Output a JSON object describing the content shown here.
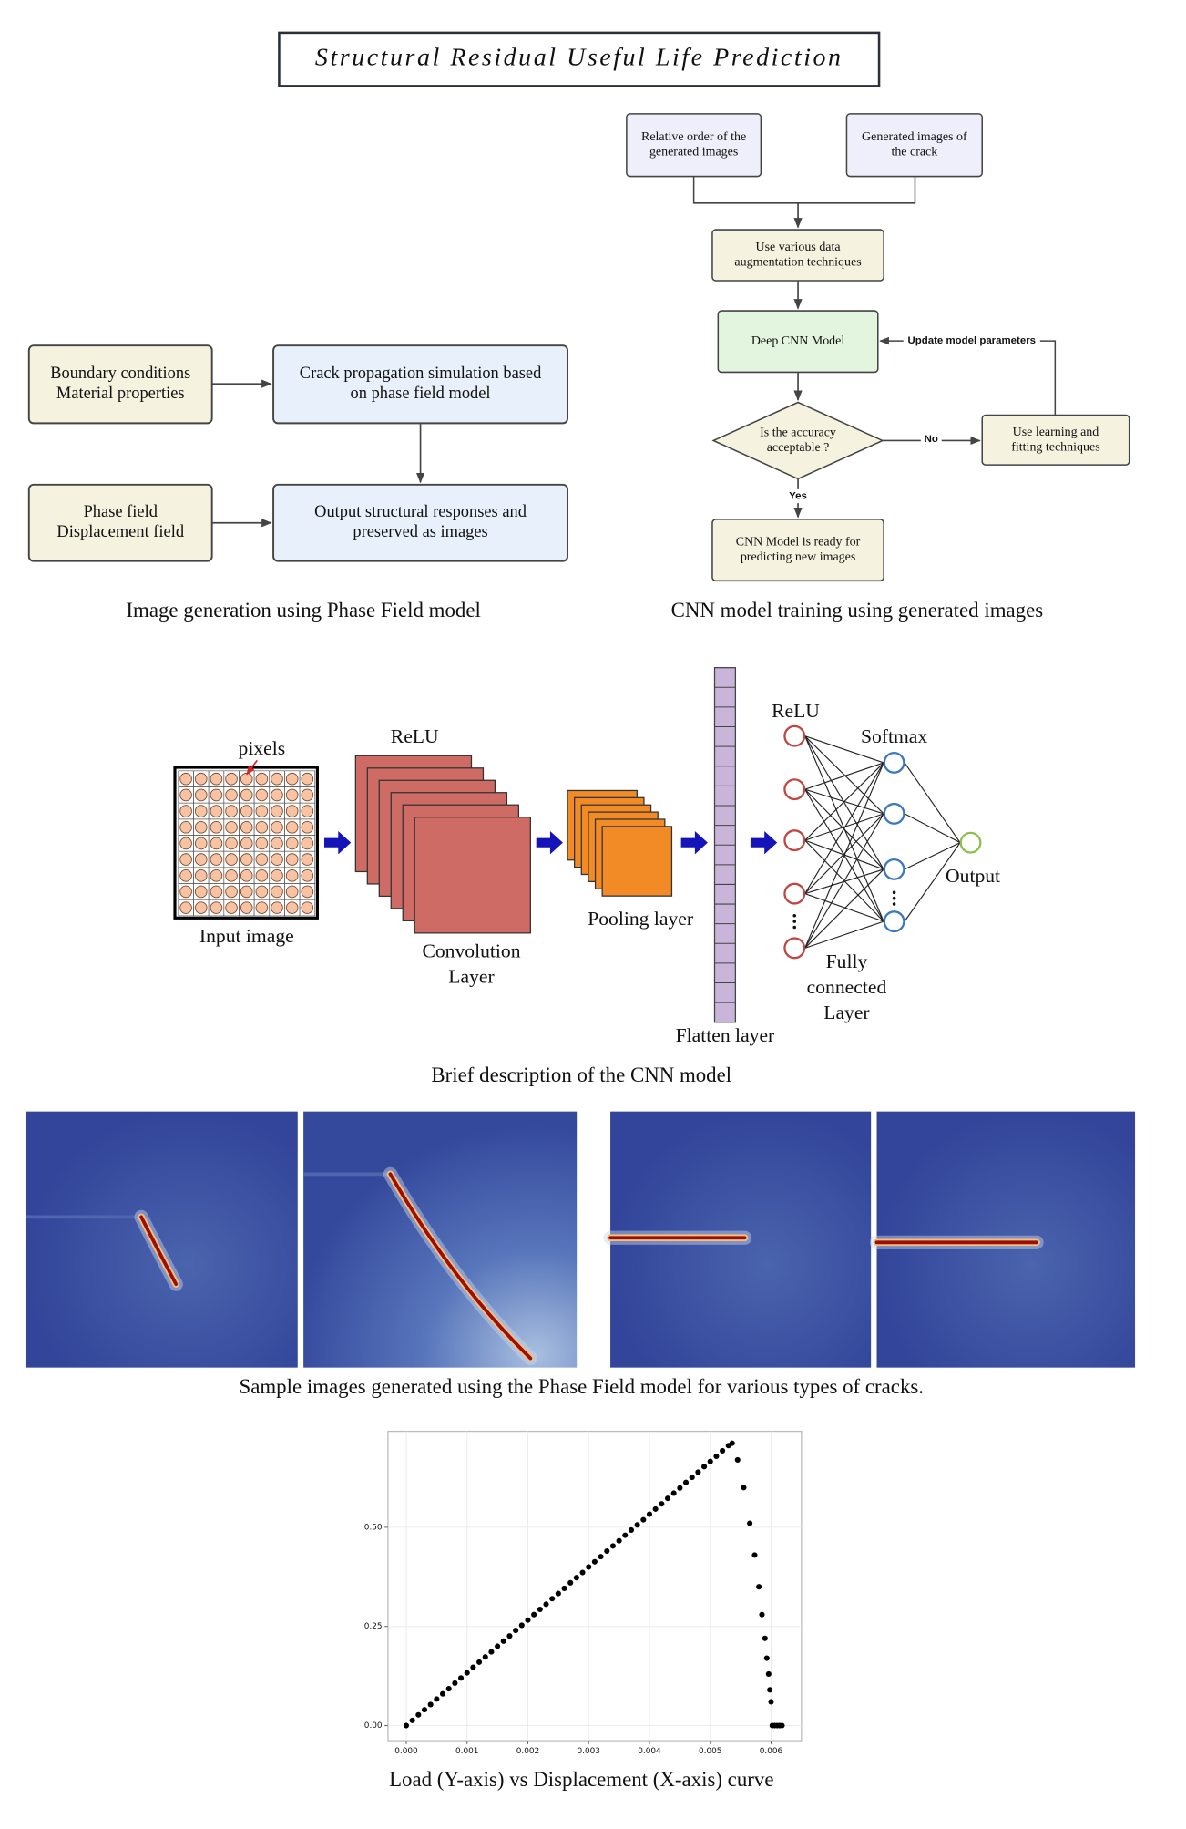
{
  "title": "Structural Residual Useful Life Prediction",
  "phase_field_flow": {
    "nodes": [
      {
        "lines": [
          "Boundary conditions",
          "Material properties"
        ]
      },
      {
        "lines": [
          "Crack propagation simulation based",
          "on phase field model"
        ]
      },
      {
        "lines": [
          "Phase field",
          "Displacement field"
        ]
      },
      {
        "lines": [
          "Output structural responses and",
          "preserved as images"
        ]
      }
    ],
    "caption": "Image generation using Phase Field model"
  },
  "cnn_training_flow": {
    "nodes": [
      {
        "lines": [
          "Relative order of the",
          "generated images"
        ]
      },
      {
        "lines": [
          "Generated images of",
          "the crack"
        ]
      },
      {
        "lines": [
          "Use various data",
          "augmentation techniques"
        ]
      },
      {
        "lines": [
          "Deep CNN Model"
        ]
      },
      {
        "lines": [
          "Is the accuracy",
          "acceptable ?"
        ]
      },
      {
        "lines": [
          "Use learning and",
          "fitting techniques"
        ]
      },
      {
        "lines": [
          "CNN Model is ready for",
          "predicting new images"
        ]
      }
    ],
    "edge_labels": {
      "update": "Update model parameters",
      "no": "No",
      "yes": "Yes"
    },
    "caption": "CNN model training using generated images"
  },
  "cnn_diagram": {
    "labels": {
      "pixels": "pixels",
      "input": "Input image",
      "conv_relu": "ReLU",
      "conv": [
        "Convolution",
        "Layer"
      ],
      "pooling": "Pooling layer",
      "flatten": "Flatten layer",
      "fc_relu": "ReLU",
      "softmax": "Softmax",
      "output": "Output",
      "fc": [
        "Fully",
        "connected",
        "Layer"
      ]
    },
    "caption": "Brief description of the CNN model"
  },
  "sample_images": {
    "caption": "Sample images generated using the Phase Field model for various types of cracks."
  },
  "chart_data": {
    "type": "scatter",
    "title": "Load (Y-axis) vs Displacement (X-axis) curve",
    "color": "#000000",
    "x": [
      0,
      0.0001,
      0.0002,
      0.0003,
      0.0004,
      0.0005,
      0.0006,
      0.0007,
      0.0008,
      0.0009,
      0.001,
      0.0011,
      0.0012,
      0.0013,
      0.0014,
      0.0015,
      0.0016,
      0.0017,
      0.0018,
      0.0019,
      0.002,
      0.0021,
      0.0022,
      0.0023,
      0.0024,
      0.0025,
      0.0026,
      0.0027,
      0.0028,
      0.0029,
      0.003,
      0.0031,
      0.0032,
      0.0033,
      0.0034,
      0.0035,
      0.0036,
      0.0037,
      0.0038,
      0.0039,
      0.004,
      0.0041,
      0.0042,
      0.0043,
      0.0044,
      0.0045,
      0.0046,
      0.0047,
      0.0048,
      0.0049,
      0.005,
      0.0051,
      0.0052,
      0.0053,
      0.00536,
      0.00545,
      0.00555,
      0.00565,
      0.00573,
      0.0058,
      0.00585,
      0.0059,
      0.00593,
      0.00596,
      0.00598,
      0.006,
      0.00602,
      0.00606,
      0.0061,
      0.00614,
      0.00618
    ],
    "values": [
      0,
      0.013,
      0.027,
      0.04,
      0.053,
      0.067,
      0.08,
      0.093,
      0.107,
      0.12,
      0.133,
      0.147,
      0.16,
      0.173,
      0.186,
      0.2,
      0.213,
      0.226,
      0.24,
      0.253,
      0.266,
      0.28,
      0.293,
      0.306,
      0.32,
      0.333,
      0.346,
      0.36,
      0.373,
      0.386,
      0.4,
      0.413,
      0.426,
      0.44,
      0.453,
      0.466,
      0.48,
      0.493,
      0.506,
      0.519,
      0.533,
      0.546,
      0.559,
      0.573,
      0.586,
      0.599,
      0.613,
      0.626,
      0.639,
      0.653,
      0.666,
      0.679,
      0.693,
      0.706,
      0.712,
      0.67,
      0.6,
      0.51,
      0.43,
      0.35,
      0.28,
      0.22,
      0.17,
      0.13,
      0.09,
      0.06,
      0,
      0,
      0,
      0,
      0
    ],
    "xlim": [
      -0.0003,
      0.0065
    ],
    "ylim": [
      -0.038,
      0.742
    ],
    "xticks": [
      {
        "value": 0,
        "label": "0.000"
      },
      {
        "value": 0.001,
        "label": "0.001"
      },
      {
        "value": 0.002,
        "label": "0.002"
      },
      {
        "value": 0.003,
        "label": "0.003"
      },
      {
        "value": 0.004,
        "label": "0.004"
      },
      {
        "value": 0.005,
        "label": "0.005"
      },
      {
        "value": 0.006,
        "label": "0.006"
      }
    ],
    "yticks": [
      {
        "value": 0,
        "label": "0.00"
      },
      {
        "value": 0.25,
        "label": "0.25"
      },
      {
        "value": 0.5,
        "label": "0.50"
      }
    ],
    "grid": true
  }
}
